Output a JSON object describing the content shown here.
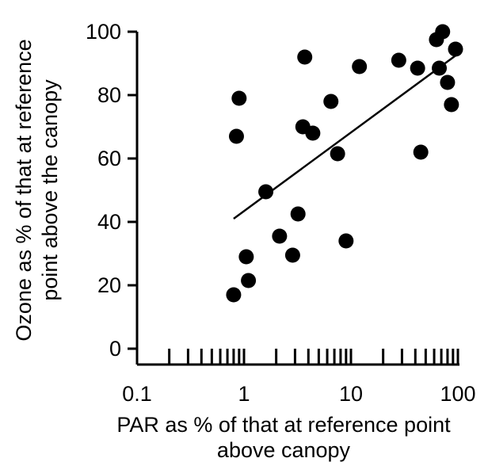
{
  "chart_data": {
    "type": "scatter",
    "title": "",
    "xlabel_lines": [
      "PAR as % of that at reference point",
      "above canopy"
    ],
    "ylabel_lines": [
      "Ozone as % of that at reference",
      "point above the canopy"
    ],
    "x_scale": "log",
    "xlim": [
      0.1,
      100
    ],
    "ylim": [
      0,
      100
    ],
    "x_ticks": [
      0.1,
      1,
      10,
      100
    ],
    "x_tick_labels": [
      "0.1",
      "1",
      "10",
      "100"
    ],
    "y_ticks": [
      0,
      20,
      40,
      60,
      80,
      100
    ],
    "y_tick_labels": [
      "0",
      "20",
      "40",
      "60",
      "80",
      "100"
    ],
    "grid": false,
    "marker_color": "#000000",
    "points": [
      {
        "x": 0.8,
        "y": 17
      },
      {
        "x": 0.85,
        "y": 67
      },
      {
        "x": 0.9,
        "y": 79
      },
      {
        "x": 1.05,
        "y": 29
      },
      {
        "x": 1.1,
        "y": 21.5
      },
      {
        "x": 1.6,
        "y": 49.5
      },
      {
        "x": 2.15,
        "y": 35.5
      },
      {
        "x": 2.85,
        "y": 29.5
      },
      {
        "x": 3.2,
        "y": 42.5
      },
      {
        "x": 3.55,
        "y": 70
      },
      {
        "x": 3.7,
        "y": 92
      },
      {
        "x": 4.4,
        "y": 68
      },
      {
        "x": 6.5,
        "y": 78
      },
      {
        "x": 7.5,
        "y": 61.5
      },
      {
        "x": 9.0,
        "y": 34
      },
      {
        "x": 12.0,
        "y": 89
      },
      {
        "x": 28.0,
        "y": 91
      },
      {
        "x": 42.0,
        "y": 88.5
      },
      {
        "x": 45.0,
        "y": 62
      },
      {
        "x": 63.0,
        "y": 97.5
      },
      {
        "x": 67.0,
        "y": 88.5
      },
      {
        "x": 72.0,
        "y": 100
      },
      {
        "x": 80.0,
        "y": 84
      },
      {
        "x": 87.0,
        "y": 77
      },
      {
        "x": 95.0,
        "y": 94.5
      }
    ],
    "trendline": {
      "x": [
        0.8,
        100
      ],
      "y": [
        41,
        93
      ]
    }
  }
}
